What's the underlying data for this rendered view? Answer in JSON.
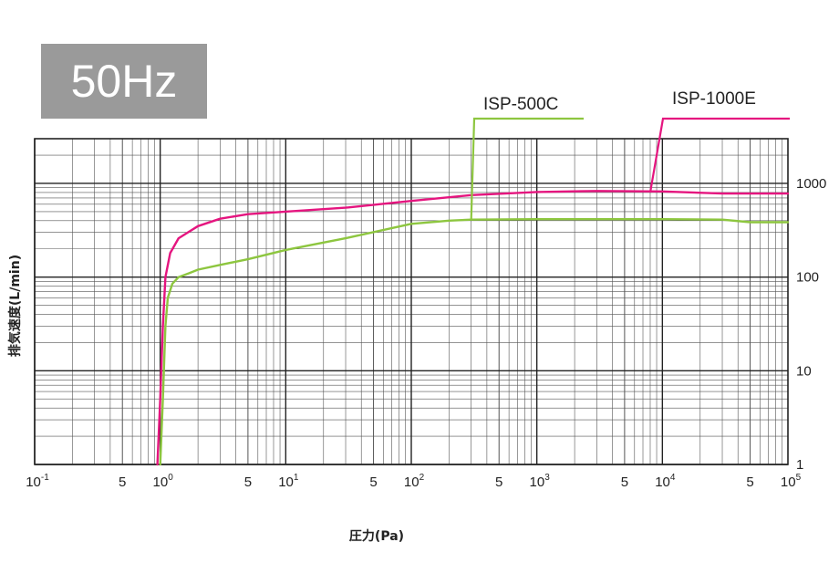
{
  "badge": {
    "label": "50Hz"
  },
  "chart_data": {
    "type": "line",
    "title": "",
    "xlabel": "圧力(Pa)",
    "ylabel": "排気速度(L/min)",
    "x_scale": "log",
    "y_scale": "log",
    "xlim": [
      0.1,
      100000
    ],
    "ylim": [
      1,
      3000
    ],
    "grid": true,
    "x_ticks": [
      {
        "value": 0.1,
        "base": "10",
        "exp": "-1"
      },
      {
        "value": 0.5,
        "base": "5",
        "exp": ""
      },
      {
        "value": 1,
        "base": "10",
        "exp": "0"
      },
      {
        "value": 5,
        "base": "5",
        "exp": ""
      },
      {
        "value": 10,
        "base": "10",
        "exp": "1"
      },
      {
        "value": 50,
        "base": "5",
        "exp": ""
      },
      {
        "value": 100,
        "base": "10",
        "exp": "2"
      },
      {
        "value": 500,
        "base": "5",
        "exp": ""
      },
      {
        "value": 1000,
        "base": "10",
        "exp": "3"
      },
      {
        "value": 5000,
        "base": "5",
        "exp": ""
      },
      {
        "value": 10000,
        "base": "10",
        "exp": "4"
      },
      {
        "value": 50000,
        "base": "5",
        "exp": ""
      },
      {
        "value": 100000,
        "base": "10",
        "exp": "5"
      }
    ],
    "y_ticks": [
      {
        "value": 1,
        "label": "1"
      },
      {
        "value": 10,
        "label": "10"
      },
      {
        "value": 100,
        "label": "100"
      },
      {
        "value": 1000,
        "label": "1000"
      }
    ],
    "series": [
      {
        "name": "ISP-1000E",
        "color": "#e5157f",
        "x": [
          0.95,
          1.0,
          1.05,
          1.1,
          1.2,
          1.4,
          2,
          3,
          5,
          8,
          10,
          30,
          100,
          300,
          1000,
          3000,
          10000,
          30000,
          100000
        ],
        "y": [
          1,
          5,
          30,
          100,
          180,
          260,
          350,
          420,
          470,
          490,
          500,
          550,
          650,
          750,
          810,
          830,
          820,
          780,
          780
        ]
      },
      {
        "name": "ISP-500C",
        "color": "#8dc63f",
        "x": [
          1.0,
          1.05,
          1.1,
          1.15,
          1.25,
          1.4,
          1.7,
          2,
          3,
          5,
          10,
          30,
          100,
          200,
          300,
          1000,
          10000,
          30000,
          50000,
          100000
        ],
        "y": [
          1,
          5,
          30,
          60,
          85,
          100,
          110,
          120,
          135,
          155,
          195,
          260,
          370,
          400,
          410,
          415,
          415,
          410,
          385,
          385
        ]
      }
    ],
    "legend_callouts": [
      {
        "series": "ISP-500C",
        "anchor_x": 300,
        "anchor_y": 410
      },
      {
        "series": "ISP-1000E",
        "anchor_x": 8000,
        "anchor_y": 800
      }
    ]
  }
}
